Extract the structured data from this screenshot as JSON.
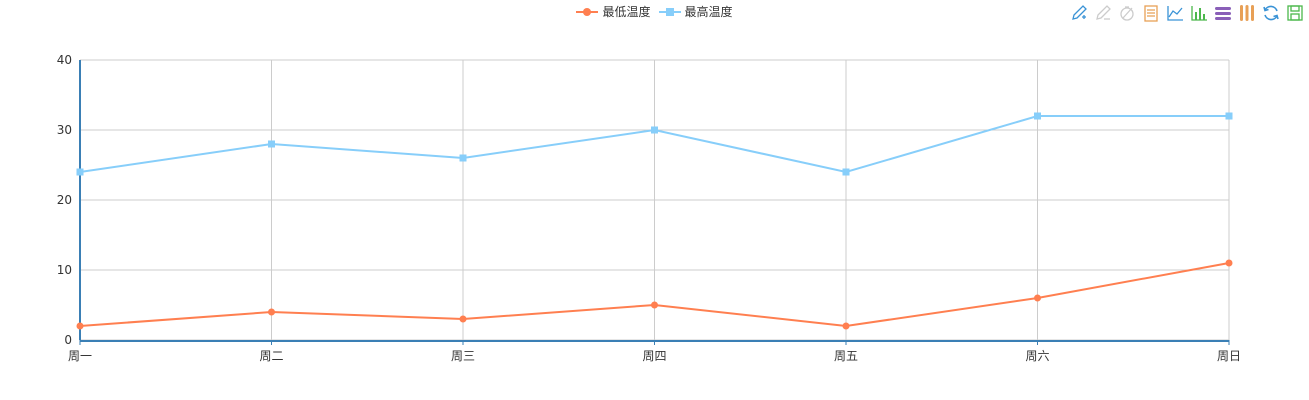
{
  "chart_data": {
    "type": "line",
    "categories": [
      "周一",
      "周二",
      "周三",
      "周四",
      "周五",
      "周六",
      "周日"
    ],
    "series": [
      {
        "name": "最低温度",
        "values": [
          2,
          4,
          3,
          5,
          2,
          6,
          11
        ],
        "color": "#ff7f50",
        "marker": "circle"
      },
      {
        "name": "最高温度",
        "values": [
          24,
          28,
          26,
          30,
          24,
          32,
          32
        ],
        "color": "#87cefa",
        "marker": "square"
      }
    ],
    "ylim": [
      0,
      40
    ],
    "yticks": [
      "0",
      "10",
      "20",
      "30",
      "40"
    ],
    "grid": true,
    "legend_position": "top-center",
    "axis_color": "#3a7fb5",
    "grid_color": "#cccccc"
  },
  "toolbox": {
    "tools": [
      {
        "name": "mark-icon",
        "color": "#3a93d6"
      },
      {
        "name": "mark-undo-icon",
        "color": "#cccccc"
      },
      {
        "name": "mark-clear-icon",
        "color": "#cccccc"
      },
      {
        "name": "data-view-icon",
        "color": "#e8a056"
      },
      {
        "name": "line-chart-icon",
        "color": "#3a93d6"
      },
      {
        "name": "bar-chart-icon",
        "color": "#4cb84c"
      },
      {
        "name": "stack-icon",
        "color": "#8a5fb8"
      },
      {
        "name": "tiled-icon",
        "color": "#e8a056"
      },
      {
        "name": "restore-icon",
        "color": "#3a93d6"
      },
      {
        "name": "save-image-icon",
        "color": "#4cb84c"
      }
    ]
  }
}
